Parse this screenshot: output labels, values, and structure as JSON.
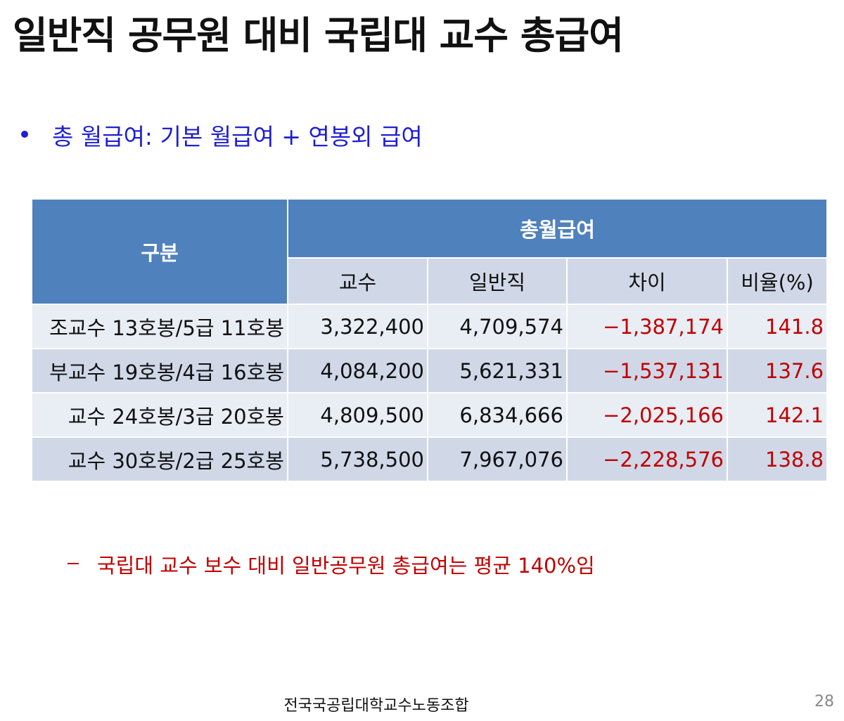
{
  "header": {
    "title": "일반직 공무원 대비 국립대 교수 총급여"
  },
  "bullet": "총 월급여: 기본 월급여 + 연봉외 급여",
  "table": {
    "header": {
      "category": "구분",
      "group": "총월급여",
      "columns": [
        "교수",
        "일반직",
        "차이",
        "비율(%)"
      ]
    },
    "rows": [
      [
        "조교수 13호봉/5급 11호봉",
        "3,322,400",
        "4,709,574",
        "−1,387,174",
        "141.8"
      ],
      [
        "부교수 19호봉/4급 16호봉",
        "4,084,200",
        "5,621,331",
        "−1,537,131",
        "137.6"
      ],
      [
        "교수 24호봉/3급 20호봉",
        "4,809,500",
        "6,834,666",
        "−2,025,166",
        "142.1"
      ],
      [
        "교수 30호봉/2급 25호봉",
        "5,738,500",
        "7,967,076",
        "−2,228,576",
        "138.8"
      ]
    ]
  },
  "note": "국립대 교수 보수 대비 일반공무원 총급여는 평균 140%임",
  "footer": {
    "organization": "전국국공립대학교수노동조합",
    "page": "28"
  }
}
